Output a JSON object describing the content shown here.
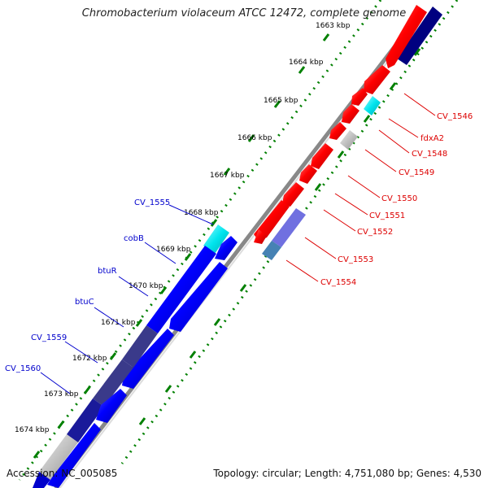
{
  "title": "Chromobacterium violaceum ATCC 12472, complete genome",
  "footer": {
    "accession": "Accession: NC_005085",
    "topology": "Topology: circular; Length: 4,751,080 bp; Genes: 4,530"
  },
  "ticks": [
    "1663 kbp",
    "1664 kbp",
    "1665 kbp",
    "1666 kbp",
    "1667 kbp",
    "1668 kbp",
    "1669 kbp",
    "1670 kbp",
    "1671 kbp",
    "1672 kbp",
    "1673 kbp",
    "1674 kbp"
  ],
  "genes_forward": [
    {
      "label": "CV_1546",
      "color": "#ff0000",
      "color_class": "red"
    },
    {
      "label": "fdxA2",
      "color": "#00e5ee",
      "color_class": "cyan"
    },
    {
      "label": "CV_1548",
      "color": "#c0c0c0",
      "color_class": "grey"
    },
    {
      "label": "CV_1549",
      "color": "#ff0000",
      "color_class": "red"
    },
    {
      "label": "CV_1550",
      "color": "#ff0000",
      "color_class": "red"
    },
    {
      "label": "CV_1551",
      "color": "#ff0000",
      "color_class": "red"
    },
    {
      "label": "CV_1552",
      "color": "#ff0000",
      "color_class": "red"
    },
    {
      "label": "CV_1553",
      "color": "#7070e0",
      "color_class": "slate-blue"
    },
    {
      "label": "CV_1554",
      "color": "#4682b4",
      "color_class": "steel-blue"
    }
  ],
  "genes_reverse": [
    {
      "label": "CV_1555",
      "color": "#00e5ee",
      "color_class": "cyan"
    },
    {
      "label": "cobB",
      "color": "#0000ff",
      "color_class": "blue"
    },
    {
      "label": "btuR",
      "color": "#0000ff",
      "color_class": "blue"
    },
    {
      "label": "btuC",
      "color": "#1a1aa0",
      "color_class": "dark-blue"
    },
    {
      "label": "CV_1559",
      "color": "#3a3a8a",
      "color_class": "dark-slate"
    },
    {
      "label": "CV_1560",
      "color": "#c0c0c0",
      "color_class": "grey"
    }
  ],
  "colors": {
    "forward_label": "#dd0000",
    "reverse_label": "#0000cc",
    "tick_dots": "#008000",
    "backbone": "#808080",
    "navy_block": "#000080"
  }
}
